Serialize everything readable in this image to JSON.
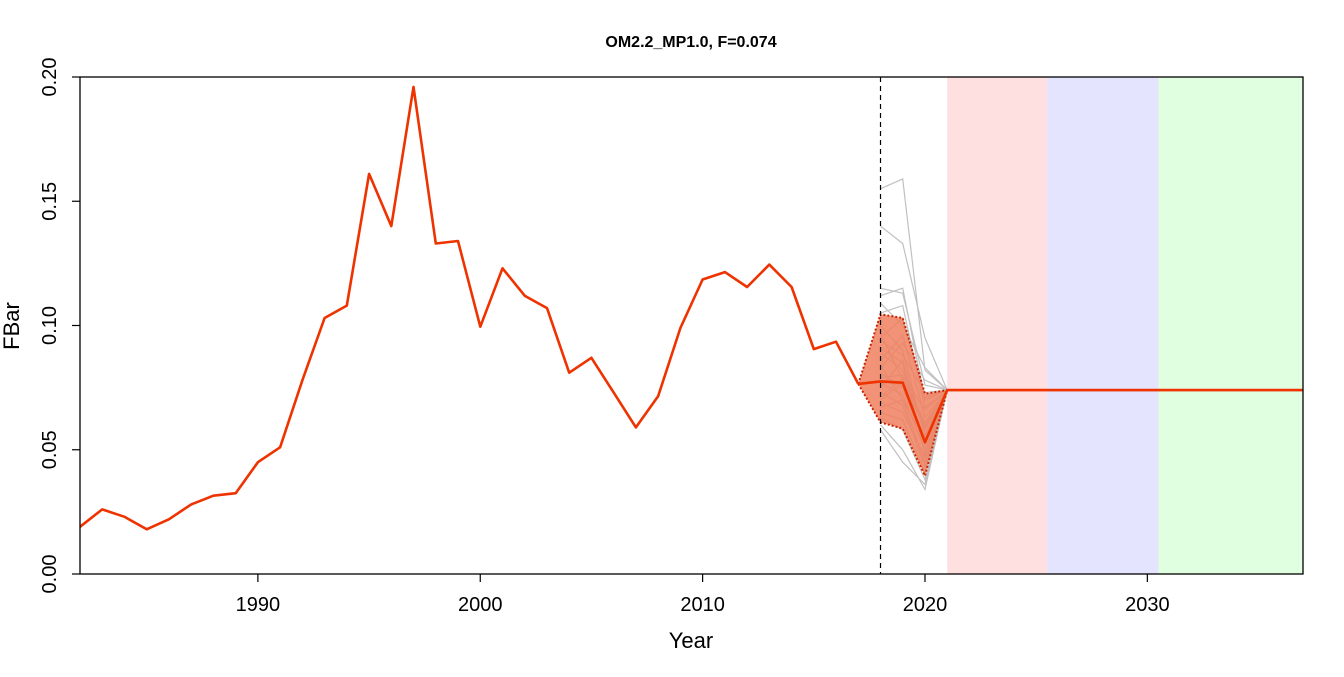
{
  "chart_data": {
    "type": "line",
    "title": "OM2.2_MP1.0, F=0.074",
    "xlabel": "Year",
    "ylabel": "FBar",
    "xlim": [
      1982,
      2037
    ],
    "ylim": [
      0,
      0.2
    ],
    "x_ticks": [
      {
        "value": 1990,
        "label": "1990"
      },
      {
        "value": 2000,
        "label": "2000"
      },
      {
        "value": 2010,
        "label": "2010"
      },
      {
        "value": 2020,
        "label": "2020"
      },
      {
        "value": 2030,
        "label": "2030"
      }
    ],
    "y_ticks": [
      {
        "value": 0.0,
        "label": "0.00"
      },
      {
        "value": 0.05,
        "label": "0.05"
      },
      {
        "value": 0.1,
        "label": "0.10"
      },
      {
        "value": 0.15,
        "label": "0.15"
      },
      {
        "value": 0.2,
        "label": "0.20"
      }
    ],
    "grid": false,
    "reference_line": {
      "x": 2018,
      "style": "dashed",
      "color": "#000000"
    },
    "shaded_periods": [
      {
        "from": 2021,
        "to": 2025.5,
        "color": "#ffe0e0"
      },
      {
        "from": 2025.5,
        "to": 2030.5,
        "color": "#e4e4ff"
      },
      {
        "from": 2030.5,
        "to": 2037,
        "color": "#e0ffe0"
      }
    ],
    "colors": {
      "median": "#ee3300",
      "band_fill": "#f08060",
      "band_edge": "#cc2200",
      "iterations": "#c0c0c0"
    },
    "historical": {
      "x": [
        1982,
        1983,
        1984,
        1985,
        1986,
        1987,
        1988,
        1989,
        1990,
        1991,
        1992,
        1993,
        1994,
        1995,
        1996,
        1997,
        1998,
        1999,
        2000,
        2001,
        2002,
        2003,
        2004,
        2005,
        2006,
        2007,
        2008,
        2009,
        2010,
        2011,
        2012,
        2013,
        2014,
        2015,
        2016,
        2017
      ],
      "y": [
        0.019,
        0.026,
        0.023,
        0.018,
        0.022,
        0.028,
        0.0315,
        0.0325,
        0.045,
        0.051,
        0.078,
        0.103,
        0.108,
        0.161,
        0.14,
        0.196,
        0.133,
        0.134,
        0.0995,
        0.123,
        0.112,
        0.107,
        0.081,
        0.087,
        0.073,
        0.059,
        0.0715,
        0.099,
        0.1185,
        0.1215,
        0.1155,
        0.1245,
        0.1155,
        0.0905,
        0.0935,
        0.0765
      ]
    },
    "projection": {
      "x": [
        2017,
        2018,
        2019,
        2020,
        2021,
        2037
      ],
      "median": [
        0.0765,
        0.0775,
        0.077,
        0.053,
        0.074,
        0.074
      ],
      "upper": [
        0.0765,
        0.1045,
        0.103,
        0.0725,
        0.074,
        0.074
      ],
      "lower": [
        0.0765,
        0.061,
        0.0585,
        0.0395,
        0.074,
        0.074
      ]
    },
    "iterations": {
      "x": [
        2018,
        2019,
        2020,
        2021
      ],
      "series": [
        [
          0.155,
          0.159,
          0.082,
          0.074
        ],
        [
          0.14,
          0.133,
          0.095,
          0.074
        ],
        [
          0.115,
          0.113,
          0.076,
          0.074
        ],
        [
          0.112,
          0.115,
          0.07,
          0.074
        ],
        [
          0.109,
          0.1,
          0.083,
          0.074
        ],
        [
          0.105,
          0.108,
          0.067,
          0.074
        ],
        [
          0.1,
          0.09,
          0.055,
          0.074
        ],
        [
          0.097,
          0.078,
          0.06,
          0.074
        ],
        [
          0.094,
          0.088,
          0.073,
          0.074
        ],
        [
          0.091,
          0.085,
          0.048,
          0.074
        ],
        [
          0.089,
          0.082,
          0.058,
          0.074
        ],
        [
          0.086,
          0.096,
          0.063,
          0.074
        ],
        [
          0.084,
          0.07,
          0.045,
          0.074
        ],
        [
          0.081,
          0.075,
          0.052,
          0.074
        ],
        [
          0.079,
          0.08,
          0.066,
          0.074
        ],
        [
          0.077,
          0.072,
          0.05,
          0.074
        ],
        [
          0.075,
          0.086,
          0.056,
          0.074
        ],
        [
          0.073,
          0.068,
          0.043,
          0.074
        ],
        [
          0.071,
          0.079,
          0.061,
          0.074
        ],
        [
          0.069,
          0.065,
          0.047,
          0.074
        ],
        [
          0.067,
          0.07,
          0.054,
          0.074
        ],
        [
          0.065,
          0.062,
          0.041,
          0.074
        ],
        [
          0.063,
          0.058,
          0.038,
          0.074
        ],
        [
          0.06,
          0.05,
          0.034,
          0.074
        ],
        [
          0.058,
          0.045,
          0.036,
          0.074
        ],
        [
          0.083,
          0.093,
          0.078,
          0.074
        ],
        [
          0.095,
          0.103,
          0.071,
          0.074
        ],
        [
          0.07,
          0.077,
          0.059,
          0.074
        ]
      ]
    }
  }
}
